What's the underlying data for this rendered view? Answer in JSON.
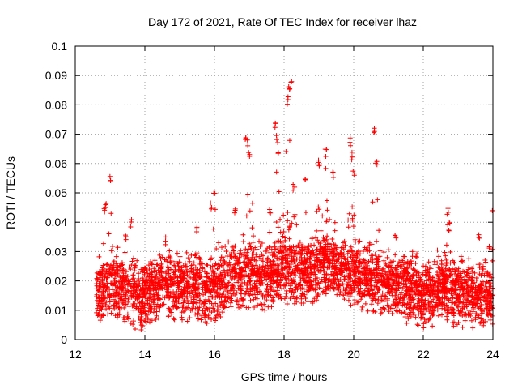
{
  "chart_data": {
    "type": "scatter",
    "title": "Day 172 of 2021, Rate Of TEC Index for receiver lhaz",
    "xlabel": "GPS time / hours",
    "ylabel": "ROTI / TECUs",
    "xlim": [
      12,
      24
    ],
    "ylim": [
      0,
      0.1
    ],
    "grid": true,
    "marker": "plus",
    "color": "#ff0000",
    "x_ticks": [
      12,
      14,
      16,
      18,
      20,
      22,
      24
    ],
    "x_tick_labels": [
      "12",
      "14",
      "16",
      "18",
      "20",
      "22",
      "24"
    ],
    "y_ticks": [
      0,
      0.01,
      0.02,
      0.03,
      0.04,
      0.05,
      0.06,
      0.07,
      0.08,
      0.09,
      0.1
    ],
    "y_tick_labels": [
      "0",
      "0.01",
      "0.02",
      "0.03",
      "0.04",
      "0.05",
      "0.06",
      "0.07",
      "0.08",
      "0.09",
      "0.1"
    ],
    "series": [
      {
        "x_start": 12.6,
        "x_end": 24.0,
        "baseline_envelope": [
          [
            12.6,
            0.015
          ],
          [
            13.0,
            0.018
          ],
          [
            13.5,
            0.016
          ],
          [
            14.0,
            0.014
          ],
          [
            14.5,
            0.019
          ],
          [
            15.0,
            0.018
          ],
          [
            15.5,
            0.017
          ],
          [
            16.0,
            0.016
          ],
          [
            16.5,
            0.02
          ],
          [
            17.0,
            0.022
          ],
          [
            17.5,
            0.021
          ],
          [
            18.0,
            0.024
          ],
          [
            18.5,
            0.022
          ],
          [
            19.0,
            0.025
          ],
          [
            19.5,
            0.024
          ],
          [
            20.0,
            0.022
          ],
          [
            20.5,
            0.02
          ],
          [
            21.0,
            0.018
          ],
          [
            21.5,
            0.017
          ],
          [
            22.0,
            0.015
          ],
          [
            22.5,
            0.016
          ],
          [
            23.0,
            0.015
          ],
          [
            23.5,
            0.014
          ],
          [
            24.0,
            0.015
          ]
        ],
        "peaks": [
          [
            12.83,
            0.045
          ],
          [
            12.88,
            0.047
          ],
          [
            13.0,
            0.056
          ],
          [
            13.45,
            0.037
          ],
          [
            13.6,
            0.041
          ],
          [
            14.6,
            0.035
          ],
          [
            15.5,
            0.039
          ],
          [
            15.9,
            0.047
          ],
          [
            16.0,
            0.05
          ],
          [
            16.6,
            0.045
          ],
          [
            16.9,
            0.071
          ],
          [
            16.95,
            0.069
          ],
          [
            17.0,
            0.065
          ],
          [
            17.6,
            0.046
          ],
          [
            17.75,
            0.075
          ],
          [
            17.8,
            0.07
          ],
          [
            17.82,
            0.064
          ],
          [
            18.1,
            0.083
          ],
          [
            18.15,
            0.088
          ],
          [
            18.2,
            0.09
          ],
          [
            18.6,
            0.055
          ],
          [
            19.0,
            0.062
          ],
          [
            19.2,
            0.065
          ],
          [
            19.4,
            0.058
          ],
          [
            19.9,
            0.069
          ],
          [
            19.95,
            0.064
          ],
          [
            20.0,
            0.058
          ],
          [
            20.6,
            0.073
          ],
          [
            20.65,
            0.061
          ],
          [
            21.2,
            0.036
          ],
          [
            21.8,
            0.031
          ],
          [
            22.7,
            0.045
          ],
          [
            22.75,
            0.04
          ],
          [
            23.1,
            0.029
          ],
          [
            23.6,
            0.036
          ],
          [
            23.9,
            0.033
          ],
          [
            24.0,
            0.045
          ]
        ]
      }
    ]
  }
}
